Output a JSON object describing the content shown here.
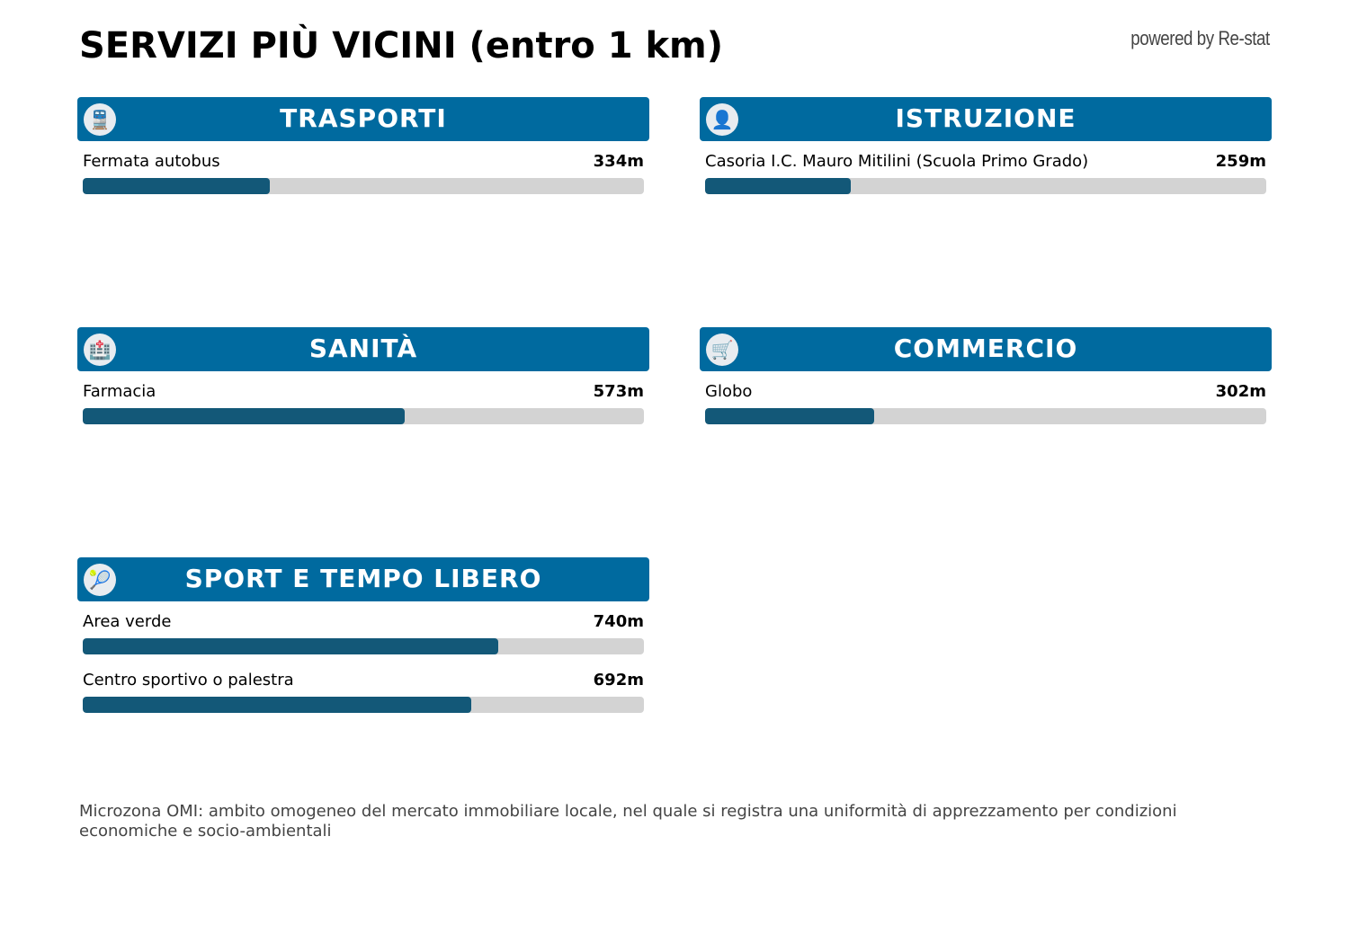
{
  "title": "SERVIZI PIÙ VICINI (entro 1 km)",
  "powered_by": "powered by Re-stat",
  "scale_max_m": 1000,
  "colors": {
    "header": "#006a9f",
    "bar_fill": "#135878",
    "bar_track": "#d3d3d3"
  },
  "panels": [
    {
      "title": "TRASPORTI",
      "icon": "train-icon",
      "items": [
        {
          "label": "Fermata autobus",
          "distance": "334m",
          "value": 334
        }
      ]
    },
    {
      "title": "ISTRUZIONE",
      "icon": "teacher-icon",
      "items": [
        {
          "label": "Casoria I.C. Mauro Mitilini (Scuola Primo Grado)",
          "distance": "259m",
          "value": 259
        }
      ]
    },
    {
      "title": "SANITÀ",
      "icon": "hospital-icon",
      "items": [
        {
          "label": "Farmacia",
          "distance": "573m",
          "value": 573
        }
      ]
    },
    {
      "title": "COMMERCIO",
      "icon": "cart-icon",
      "items": [
        {
          "label": "Globo",
          "distance": "302m",
          "value": 302
        }
      ]
    },
    {
      "title": "SPORT E TEMPO LIBERO",
      "icon": "tennis-racket-icon",
      "items": [
        {
          "label": "Area verde",
          "distance": "740m",
          "value": 740
        },
        {
          "label": "Centro sportivo o palestra",
          "distance": "692m",
          "value": 692
        }
      ]
    }
  ],
  "note": "Microzona OMI: ambito omogeneo del mercato immobiliare locale, nel quale si registra una uniformità di apprezzamento per condizioni economiche e socio-ambientali"
}
